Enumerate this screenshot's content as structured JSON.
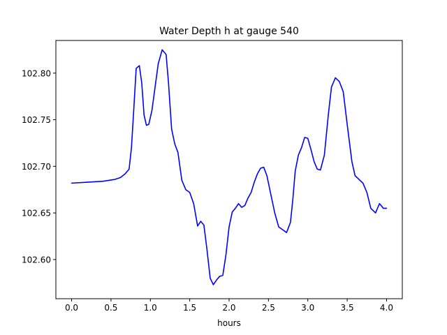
{
  "chart_data": {
    "type": "line",
    "title": "Water Depth h at gauge 540",
    "xlabel": "hours",
    "ylabel": "",
    "xlim": [
      -0.2,
      4.2
    ],
    "ylim": [
      102.558,
      102.835
    ],
    "xticks": [
      {
        "value": 0.0,
        "label": "0.0"
      },
      {
        "value": 0.5,
        "label": "0.5"
      },
      {
        "value": 1.0,
        "label": "1.0"
      },
      {
        "value": 1.5,
        "label": "1.5"
      },
      {
        "value": 2.0,
        "label": "2.0"
      },
      {
        "value": 2.5,
        "label": "2.5"
      },
      {
        "value": 3.0,
        "label": "3.0"
      },
      {
        "value": 3.5,
        "label": "3.5"
      },
      {
        "value": 4.0,
        "label": "4.0"
      }
    ],
    "yticks": [
      {
        "value": 102.6,
        "label": "102.60"
      },
      {
        "value": 102.65,
        "label": "102.65"
      },
      {
        "value": 102.7,
        "label": "102.70"
      },
      {
        "value": 102.75,
        "label": "102.75"
      },
      {
        "value": 102.8,
        "label": "102.80"
      }
    ],
    "grid": false,
    "series": [
      {
        "color": "#0000ff",
        "x": [
          0.0,
          0.2,
          0.4,
          0.55,
          0.62,
          0.68,
          0.73,
          0.76,
          0.79,
          0.82,
          0.86,
          0.89,
          0.92,
          0.95,
          0.98,
          1.02,
          1.06,
          1.1,
          1.15,
          1.2,
          1.23,
          1.27,
          1.31,
          1.35,
          1.4,
          1.45,
          1.5,
          1.55,
          1.6,
          1.64,
          1.68,
          1.72,
          1.76,
          1.8,
          1.84,
          1.88,
          1.92,
          1.96,
          2.0,
          2.04,
          2.08,
          2.12,
          2.16,
          2.2,
          2.24,
          2.28,
          2.32,
          2.36,
          2.4,
          2.44,
          2.48,
          2.53,
          2.58,
          2.63,
          2.68,
          2.73,
          2.78,
          2.81,
          2.84,
          2.88,
          2.92,
          2.96,
          3.0,
          3.04,
          3.08,
          3.12,
          3.16,
          3.21,
          3.26,
          3.3,
          3.35,
          3.4,
          3.45,
          3.5,
          3.56,
          3.6,
          3.65,
          3.7,
          3.75,
          3.8,
          3.86,
          3.91,
          3.96,
          4.0
        ],
        "y": [
          102.682,
          102.683,
          102.684,
          102.686,
          102.688,
          102.692,
          102.697,
          102.72,
          102.762,
          102.805,
          102.808,
          102.79,
          102.755,
          102.744,
          102.745,
          102.76,
          102.785,
          102.81,
          102.825,
          102.82,
          102.79,
          102.74,
          102.724,
          102.715,
          102.685,
          102.675,
          102.672,
          102.66,
          102.636,
          102.641,
          102.637,
          102.61,
          102.58,
          102.573,
          102.578,
          102.582,
          102.583,
          102.605,
          102.635,
          102.651,
          102.655,
          102.66,
          102.656,
          102.658,
          102.666,
          102.672,
          102.683,
          102.692,
          102.698,
          102.699,
          102.69,
          102.67,
          102.65,
          102.635,
          102.632,
          102.629,
          102.64,
          102.665,
          102.695,
          102.712,
          102.72,
          102.731,
          102.73,
          102.718,
          102.705,
          102.697,
          102.696,
          102.712,
          102.755,
          102.785,
          102.795,
          102.791,
          102.78,
          102.745,
          102.705,
          102.69,
          102.686,
          102.682,
          102.672,
          102.655,
          102.65,
          102.66,
          102.655,
          102.655
        ]
      }
    ]
  }
}
